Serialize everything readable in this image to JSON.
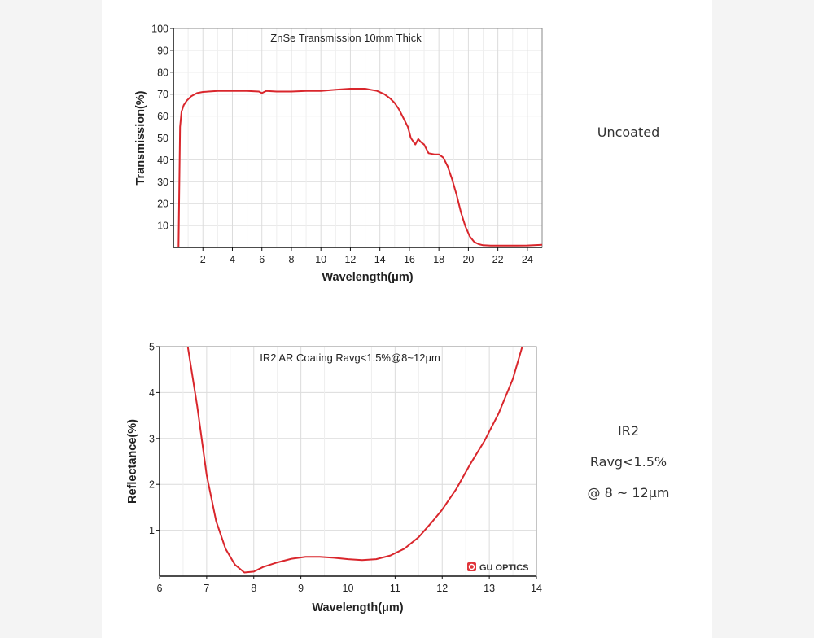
{
  "colors": {
    "curve": "#d9262c",
    "grid": "#dcdcdc",
    "axis": "#111111",
    "text": "#222222",
    "logo": "#e0343a"
  },
  "labels": {
    "uncoated": "Uncoated",
    "ir2_line1": "IR2",
    "ir2_line2": "Ravg<1.5%",
    "ir2_line3": "@ 8 ~ 12μm"
  },
  "logo": {
    "text": "GU OPTICS"
  },
  "chart_data": [
    {
      "type": "line",
      "title": "ZnSe Transmission 10mm Thick",
      "xlabel": "Wavelength(μm)",
      "ylabel": "Transmission(%)",
      "xlim": [
        0,
        25
      ],
      "ylim": [
        0,
        100
      ],
      "x_ticks": [
        2,
        4,
        6,
        8,
        10,
        12,
        14,
        16,
        18,
        20,
        22,
        24
      ],
      "y_ticks": [
        10,
        20,
        30,
        40,
        50,
        60,
        70,
        80,
        90,
        100
      ],
      "grid": true,
      "series": [
        {
          "x": [
            0.3,
            0.35,
            0.45,
            0.55,
            0.7,
            0.9,
            1.2,
            1.6,
            2,
            3,
            4,
            5,
            5.8,
            6,
            6.3,
            7,
            8,
            9,
            10,
            11,
            12,
            13,
            13.8,
            14.3,
            14.7,
            15,
            15.3,
            15.6,
            15.9,
            16.1,
            16.4,
            16.6,
            16.8,
            17,
            17.3,
            17.7,
            18,
            18.3,
            18.6,
            18.9,
            19.2,
            19.5,
            19.8,
            20.1,
            20.4,
            20.7,
            21,
            21.5,
            22,
            23,
            24,
            25
          ],
          "y": [
            0,
            0,
            55,
            62,
            65,
            67,
            69,
            70.5,
            71,
            71.5,
            71.5,
            71.5,
            71.2,
            70.5,
            71.5,
            71.2,
            71.2,
            71.5,
            71.5,
            72,
            72.5,
            72.5,
            71.5,
            70,
            68,
            66,
            63,
            59,
            55,
            50,
            47,
            49.5,
            48,
            47,
            43,
            42.5,
            42.5,
            41,
            37,
            31,
            24,
            16,
            9.5,
            5,
            2.5,
            1.5,
            1,
            0.8,
            0.8,
            0.8,
            0.9,
            1.2
          ]
        }
      ]
    },
    {
      "type": "line",
      "title": "IR2 AR Coating Ravg<1.5%@8~12μm",
      "xlabel": "Wavelength(μm)",
      "ylabel": "Reflectance(%)",
      "xlim": [
        6,
        14
      ],
      "ylim": [
        0,
        5
      ],
      "x_ticks": [
        6,
        7,
        8,
        9,
        10,
        11,
        12,
        13,
        14
      ],
      "y_ticks": [
        1,
        2,
        3,
        4,
        5
      ],
      "grid": true,
      "series": [
        {
          "x": [
            6.6,
            6.8,
            7,
            7.2,
            7.4,
            7.6,
            7.8,
            8,
            8.2,
            8.5,
            8.8,
            9.1,
            9.4,
            9.7,
            10,
            10.3,
            10.6,
            10.9,
            11.2,
            11.5,
            11.8,
            12,
            12.3,
            12.6,
            12.9,
            13.2,
            13.5,
            13.7
          ],
          "y": [
            5,
            3.7,
            2.2,
            1.2,
            0.6,
            0.25,
            0.08,
            0.1,
            0.2,
            0.3,
            0.38,
            0.42,
            0.42,
            0.4,
            0.37,
            0.35,
            0.37,
            0.45,
            0.6,
            0.85,
            1.2,
            1.45,
            1.9,
            2.45,
            2.95,
            3.55,
            4.3,
            5
          ]
        }
      ]
    }
  ]
}
